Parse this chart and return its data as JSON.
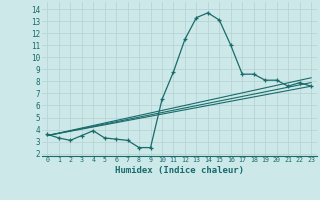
{
  "xlabel": "Humidex (Indice chaleur)",
  "background_color": "#cce8e8",
  "grid_color": "#b8d4d4",
  "line_color": "#1a6b6b",
  "x_ticks": [
    0,
    1,
    2,
    3,
    4,
    5,
    6,
    7,
    8,
    9,
    10,
    11,
    12,
    13,
    14,
    15,
    16,
    17,
    18,
    19,
    20,
    21,
    22,
    23
  ],
  "y_ticks": [
    2,
    3,
    4,
    5,
    6,
    7,
    8,
    9,
    10,
    11,
    12,
    13,
    14
  ],
  "ylim": [
    1.8,
    14.6
  ],
  "xlim": [
    -0.5,
    23.5
  ],
  "main_series": {
    "x": [
      0,
      1,
      2,
      3,
      4,
      5,
      6,
      7,
      8,
      9,
      10,
      11,
      12,
      13,
      14,
      15,
      16,
      17,
      18,
      19,
      20,
      21,
      22,
      23
    ],
    "y": [
      3.6,
      3.3,
      3.1,
      3.5,
      3.9,
      3.3,
      3.2,
      3.1,
      2.5,
      2.5,
      6.5,
      8.8,
      11.5,
      13.3,
      13.7,
      13.1,
      11.0,
      8.6,
      8.6,
      8.1,
      8.1,
      7.6,
      7.9,
      7.6
    ]
  },
  "trend_lines": [
    {
      "x": [
        0,
        23
      ],
      "y": [
        3.5,
        8.3
      ]
    },
    {
      "x": [
        0,
        23
      ],
      "y": [
        3.5,
        7.6
      ]
    },
    {
      "x": [
        0,
        23
      ],
      "y": [
        3.5,
        7.9
      ]
    }
  ]
}
